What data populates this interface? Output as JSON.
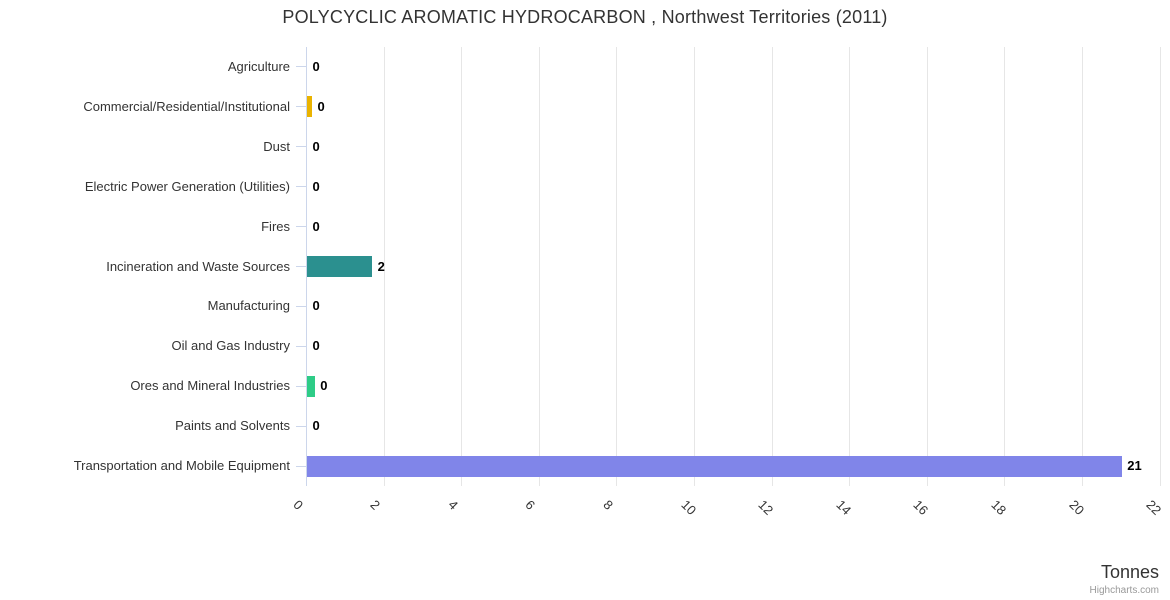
{
  "chart_data": {
    "type": "bar",
    "orientation": "horizontal",
    "title": "POLYCYCLIC AROMATIC HYDROCARBON , Northwest Territories (2011)",
    "categories": [
      "Agriculture",
      "Commercial/Residential/Institutional",
      "Dust",
      "Electric Power Generation (Utilities)",
      "Fires",
      "Incineration and Waste Sources",
      "Manufacturing",
      "Oil and Gas Industry",
      "Ores and Mineral Industries",
      "Paints and Solvents",
      "Transportation and Mobile Equipment"
    ],
    "values": [
      0,
      0,
      0,
      0,
      0,
      2,
      0,
      0,
      0,
      0,
      21
    ],
    "data_labels": [
      "0",
      "0",
      "0",
      "0",
      "0",
      "2",
      "0",
      "0",
      "0",
      "0",
      "21"
    ],
    "bar_lengths_tonnes": [
      0,
      0.13,
      0,
      0,
      0,
      1.68,
      0,
      0,
      0.2,
      0,
      21
    ],
    "bar_colors": [
      null,
      "#eab300",
      null,
      null,
      null,
      "#2b908f",
      null,
      null,
      "#2ecc87",
      null,
      "#8085e9"
    ],
    "xlabel": "Tonnes",
    "ylabel": "",
    "xlim": [
      0,
      22
    ],
    "x_ticks": [
      0,
      2,
      4,
      6,
      8,
      10,
      12,
      14,
      16,
      18,
      20,
      22
    ],
    "x_tick_rotation": 45,
    "grid": true,
    "legend": false,
    "credits": "Highcharts.com",
    "colors": {
      "grid_line": "#e6e6e6",
      "axis_line": "#ccd6eb",
      "title_text": "#333333",
      "tick_text": "#333333",
      "data_label_text": "#000000",
      "credits_text": "#999999"
    }
  }
}
